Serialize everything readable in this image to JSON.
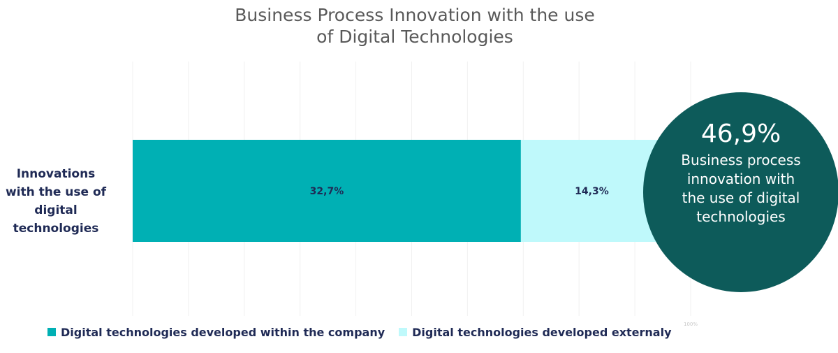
{
  "title": {
    "line1": "Business Process Innovation with the use",
    "line2": "of Digital Technologies"
  },
  "badge": {
    "value": "46,9%",
    "text": "Business process innovation with the use of digital technologies",
    "color": "#0d5b5a"
  },
  "chart_data": {
    "type": "bar",
    "orientation": "horizontal",
    "stacked": true,
    "categories": [
      "Innovations with the use of digital technologies"
    ],
    "series": [
      {
        "name": "Digital technologies developed within the company",
        "values": [
          32.7
        ],
        "labels": [
          "32,7%"
        ],
        "color": "#00b0b4"
      },
      {
        "name": "Digital technologies developed externaly",
        "values": [
          14.3
        ],
        "labels": [
          "14,3%"
        ],
        "color": "#bff9fb"
      }
    ],
    "xlim": [
      0,
      50
    ],
    "x_tick_label": "100%",
    "grid": true,
    "legend_position": "bottom-left"
  }
}
